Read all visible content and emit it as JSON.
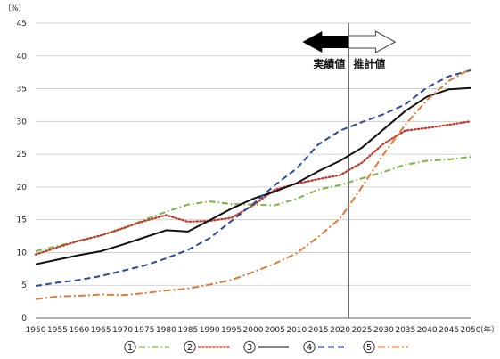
{
  "chart_data": {
    "type": "line",
    "title": "",
    "xlabel": "",
    "ylabel": "",
    "y_unit": "〔%〕",
    "x_unit": "〔年〕",
    "ylim": [
      0,
      45
    ],
    "y_ticks": [
      0,
      5,
      10,
      15,
      20,
      25,
      30,
      35,
      40,
      45
    ],
    "grid": "horizontal",
    "legend_position": "bottom",
    "x": [
      1950,
      1955,
      1960,
      1965,
      1970,
      1975,
      1980,
      1985,
      1990,
      1995,
      2000,
      2005,
      2010,
      2015,
      2020,
      2025,
      2030,
      2035,
      2040,
      2045,
      2050
    ],
    "x_tick_labels": [
      "1950",
      "1955",
      "1960",
      "1965",
      "1970",
      "1975",
      "1980",
      "1985",
      "1990",
      "1995",
      "2000",
      "2005",
      "2010",
      "2015",
      "2020",
      "2025",
      "2030",
      "2035",
      "2040",
      "2045",
      "2050"
    ],
    "divider_year": 2022,
    "annotations": {
      "actual": "実績値",
      "projection": "推計値"
    },
    "series": [
      {
        "name": "①",
        "color": "#7ab648",
        "dash": "dashdot",
        "values": [
          10.2,
          11.0,
          11.8,
          12.6,
          13.6,
          15.0,
          16.2,
          17.3,
          17.8,
          17.4,
          17.3,
          17.2,
          18.2,
          19.6,
          20.3,
          21.3,
          22.3,
          23.4,
          24.0,
          24.2,
          24.6
        ]
      },
      {
        "name": "②",
        "color": "#c0392b",
        "dash": "dotted",
        "values": [
          9.7,
          10.8,
          11.8,
          12.6,
          13.7,
          14.8,
          15.7,
          14.7,
          14.8,
          15.3,
          17.2,
          19.6,
          20.5,
          21.2,
          21.8,
          23.7,
          26.6,
          28.6,
          29.0,
          29.5,
          30.0
        ]
      },
      {
        "name": "③",
        "color": "#111111",
        "dash": "solid",
        "values": [
          8.2,
          8.9,
          9.6,
          10.2,
          11.2,
          12.3,
          13.4,
          13.2,
          14.9,
          16.7,
          18.2,
          19.3,
          20.6,
          22.4,
          24.0,
          26.0,
          28.8,
          31.6,
          33.8,
          34.9,
          35.1
        ]
      },
      {
        "name": "④",
        "color": "#2a4b9b",
        "dash": "dashed",
        "values": [
          4.9,
          5.4,
          5.8,
          6.4,
          7.2,
          8.0,
          9.1,
          10.4,
          12.2,
          14.8,
          17.4,
          20.3,
          22.8,
          26.5,
          28.6,
          29.9,
          31.1,
          32.6,
          35.2,
          36.9,
          37.8
        ]
      },
      {
        "name": "⑤",
        "color": "#e07b39",
        "dash": "longdashdot",
        "values": [
          2.9,
          3.3,
          3.4,
          3.6,
          3.5,
          3.8,
          4.2,
          4.5,
          5.1,
          5.8,
          7.0,
          8.3,
          9.9,
          12.4,
          15.2,
          20.0,
          25.0,
          29.5,
          33.3,
          36.2,
          38.0
        ]
      }
    ]
  }
}
